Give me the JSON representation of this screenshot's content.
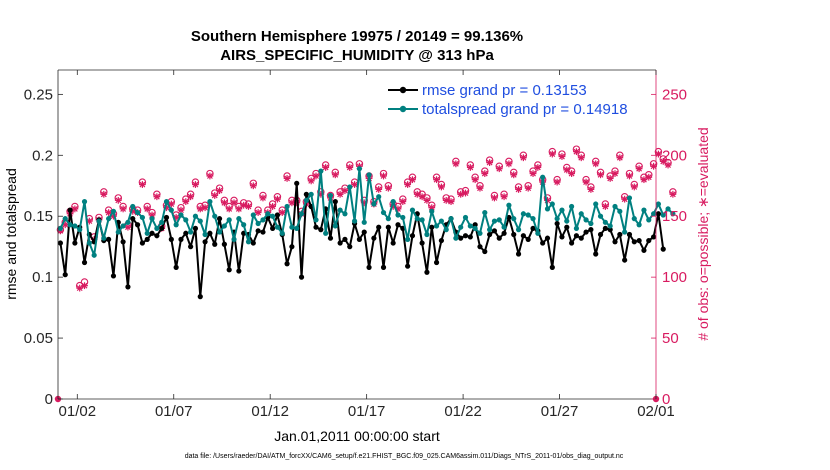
{
  "chart_data": {
    "type": "line",
    "title": "Southern Hemisphere 19975 / 20149 = 99.136%",
    "subtitle": "AIRS_SPECIFIC_HUMIDITY @ 313 hPa",
    "xlabel": "Jan.01,2011 00:00:00 start",
    "ylabel_left": "rmse and totalspread",
    "ylabel_right": "# of obs: o=possible; ∗=evaluated",
    "footnote": "data file: /Users/raeder/DAI/ATM_forcXX/CAM6_setup/f.e21.FHIST_BGC.f09_025.CAM6assim.011/Diags_NTrS_2011-01/obs_diag_output.nc",
    "ylim_left": [
      0,
      0.27
    ],
    "ylim_right": [
      0,
      270
    ],
    "xlim": [
      0,
      31
    ],
    "x_ticks": [
      "01/02",
      "01/07",
      "01/12",
      "01/17",
      "01/22",
      "01/27",
      "02/01"
    ],
    "x_tick_days": [
      1,
      6,
      11,
      16,
      21,
      26,
      31
    ],
    "yticks_left": [
      "0",
      "0.05",
      "0.1",
      "0.15",
      "0.2",
      "0.25"
    ],
    "ytick_values_left": [
      0,
      0.05,
      0.1,
      0.15,
      0.2,
      0.25
    ],
    "yticks_right": [
      "0",
      "50",
      "100",
      "150",
      "200",
      "250"
    ],
    "ytick_values_right": [
      0,
      50,
      100,
      150,
      200,
      250
    ],
    "series": [
      {
        "name": "rmse grand pr = 0.13153",
        "color": "#000000",
        "values": [
          0.128,
          0.102,
          0.155,
          0.128,
          0.141,
          0.112,
          0.135,
          0.129,
          0.147,
          0.13,
          0.131,
          0.101,
          0.145,
          0.129,
          0.092,
          0.148,
          0.143,
          0.128,
          0.131,
          0.136,
          0.134,
          0.14,
          0.149,
          0.131,
          0.108,
          0.131,
          0.136,
          0.125,
          0.14,
          0.084,
          0.129,
          0.136,
          0.127,
          0.148,
          0.127,
          0.106,
          0.137,
          0.105,
          0.136,
          0.135,
          0.128,
          0.138,
          0.137,
          0.149,
          0.14,
          0.151,
          0.135,
          0.111,
          0.125,
          0.177,
          0.1,
          0.168,
          0.158,
          0.141,
          0.139,
          0.156,
          0.132,
          0.162,
          0.128,
          0.131,
          0.125,
          0.144,
          0.131,
          0.137,
          0.108,
          0.132,
          0.141,
          0.108,
          0.141,
          0.128,
          0.143,
          0.14,
          0.109,
          0.134,
          0.152,
          0.128,
          0.104,
          0.141,
          0.112,
          0.13,
          0.143,
          0.148,
          0.137,
          0.132,
          0.134,
          0.133,
          0.143,
          0.125,
          0.121,
          0.135,
          0.138,
          0.132,
          0.136,
          0.149,
          0.135,
          0.119,
          0.134,
          0.131,
          0.14,
          0.138,
          0.128,
          0.132,
          0.108,
          0.144,
          0.133,
          0.141,
          0.128,
          0.134,
          0.132,
          0.137,
          0.139,
          0.119,
          0.135,
          0.14,
          0.139,
          0.129,
          0.135,
          0.114,
          0.135,
          0.129,
          0.13,
          0.122,
          0.13,
          0.133,
          0.152,
          0.123
        ]
      },
      {
        "name": "totalspread grand pr = 0.14918",
        "color": "#008080",
        "values": [
          0.14,
          0.148,
          0.143,
          0.142,
          0.139,
          0.162,
          0.128,
          0.118,
          0.146,
          0.132,
          0.148,
          0.154,
          0.137,
          0.142,
          0.145,
          0.158,
          0.153,
          0.149,
          0.136,
          0.148,
          0.14,
          0.145,
          0.162,
          0.155,
          0.143,
          0.151,
          0.147,
          0.137,
          0.15,
          0.146,
          0.135,
          0.162,
          0.15,
          0.137,
          0.142,
          0.147,
          0.131,
          0.148,
          0.143,
          0.129,
          0.151,
          0.144,
          0.147,
          0.152,
          0.15,
          0.141,
          0.136,
          0.158,
          0.141,
          0.14,
          0.152,
          0.163,
          0.168,
          0.147,
          0.187,
          0.136,
          0.167,
          0.142,
          0.155,
          0.152,
          0.174,
          0.146,
          0.189,
          0.145,
          0.184,
          0.16,
          0.166,
          0.153,
          0.148,
          0.162,
          0.151,
          0.149,
          0.131,
          0.155,
          0.148,
          0.147,
          0.135,
          0.154,
          0.142,
          0.146,
          0.139,
          0.148,
          0.132,
          0.141,
          0.149,
          0.142,
          0.14,
          0.136,
          0.153,
          0.139,
          0.146,
          0.147,
          0.141,
          0.159,
          0.148,
          0.139,
          0.152,
          0.151,
          0.148,
          0.136,
          0.182,
          0.156,
          0.16,
          0.148,
          0.155,
          0.146,
          0.158,
          0.14,
          0.152,
          0.147,
          0.144,
          0.16,
          0.15,
          0.145,
          0.142,
          0.158,
          0.154,
          0.137,
          0.165,
          0.148,
          0.143,
          0.155,
          0.147,
          0.152,
          0.16,
          0.151,
          0.156,
          0.152
        ]
      }
    ],
    "obs_possible": [
      139,
      145,
      154,
      158,
      93,
      96,
      148,
      133,
      149,
      170,
      155,
      152,
      165,
      158,
      143,
      156,
      155,
      178,
      158,
      153,
      168,
      142,
      159,
      162,
      151,
      157,
      164,
      168,
      178,
      158,
      159,
      185,
      169,
      173,
      163,
      158,
      163,
      158,
      161,
      160,
      177,
      155,
      167,
      155,
      160,
      166,
      155,
      183,
      163,
      163,
      154,
      162,
      181,
      185,
      170,
      192,
      167,
      186,
      170,
      173,
      192,
      178,
      193,
      163,
      183,
      162,
      174,
      185,
      175,
      160,
      158,
      164,
      178,
      182,
      170,
      168,
      165,
      159,
      182,
      176,
      165,
      164,
      195,
      170,
      171,
      192,
      182,
      175,
      187,
      196,
      167,
      191,
      168,
      195,
      186,
      174,
      200,
      175,
      187,
      192,
      180,
      165,
      203,
      180,
      201,
      190,
      187,
      205,
      200,
      180,
      174,
      195,
      186,
      160,
      183,
      187,
      200,
      166,
      185,
      176,
      191,
      182,
      184,
      193,
      203,
      197,
      194,
      170
    ],
    "obs_evaluated": [
      138,
      143,
      152,
      156,
      91,
      93,
      146,
      131,
      147,
      168,
      153,
      150,
      163,
      156,
      141,
      154,
      153,
      176,
      156,
      151,
      166,
      140,
      157,
      160,
      149,
      155,
      162,
      166,
      176,
      156,
      157,
      183,
      167,
      171,
      161,
      156,
      161,
      156,
      159,
      158,
      175,
      153,
      165,
      153,
      158,
      164,
      153,
      181,
      161,
      161,
      152,
      160,
      179,
      183,
      168,
      190,
      165,
      184,
      168,
      171,
      190,
      176,
      191,
      161,
      181,
      160,
      172,
      183,
      173,
      158,
      156,
      162,
      176,
      180,
      168,
      166,
      163,
      157,
      180,
      174,
      163,
      162,
      193,
      168,
      169,
      190,
      180,
      173,
      185,
      194,
      165,
      189,
      166,
      193,
      184,
      172,
      198,
      173,
      185,
      190,
      178,
      163,
      201,
      178,
      199,
      188,
      185,
      203,
      198,
      178,
      172,
      193,
      184,
      158,
      181,
      185,
      198,
      164,
      183,
      174,
      189,
      180,
      182,
      191,
      201,
      195,
      192,
      168
    ]
  }
}
